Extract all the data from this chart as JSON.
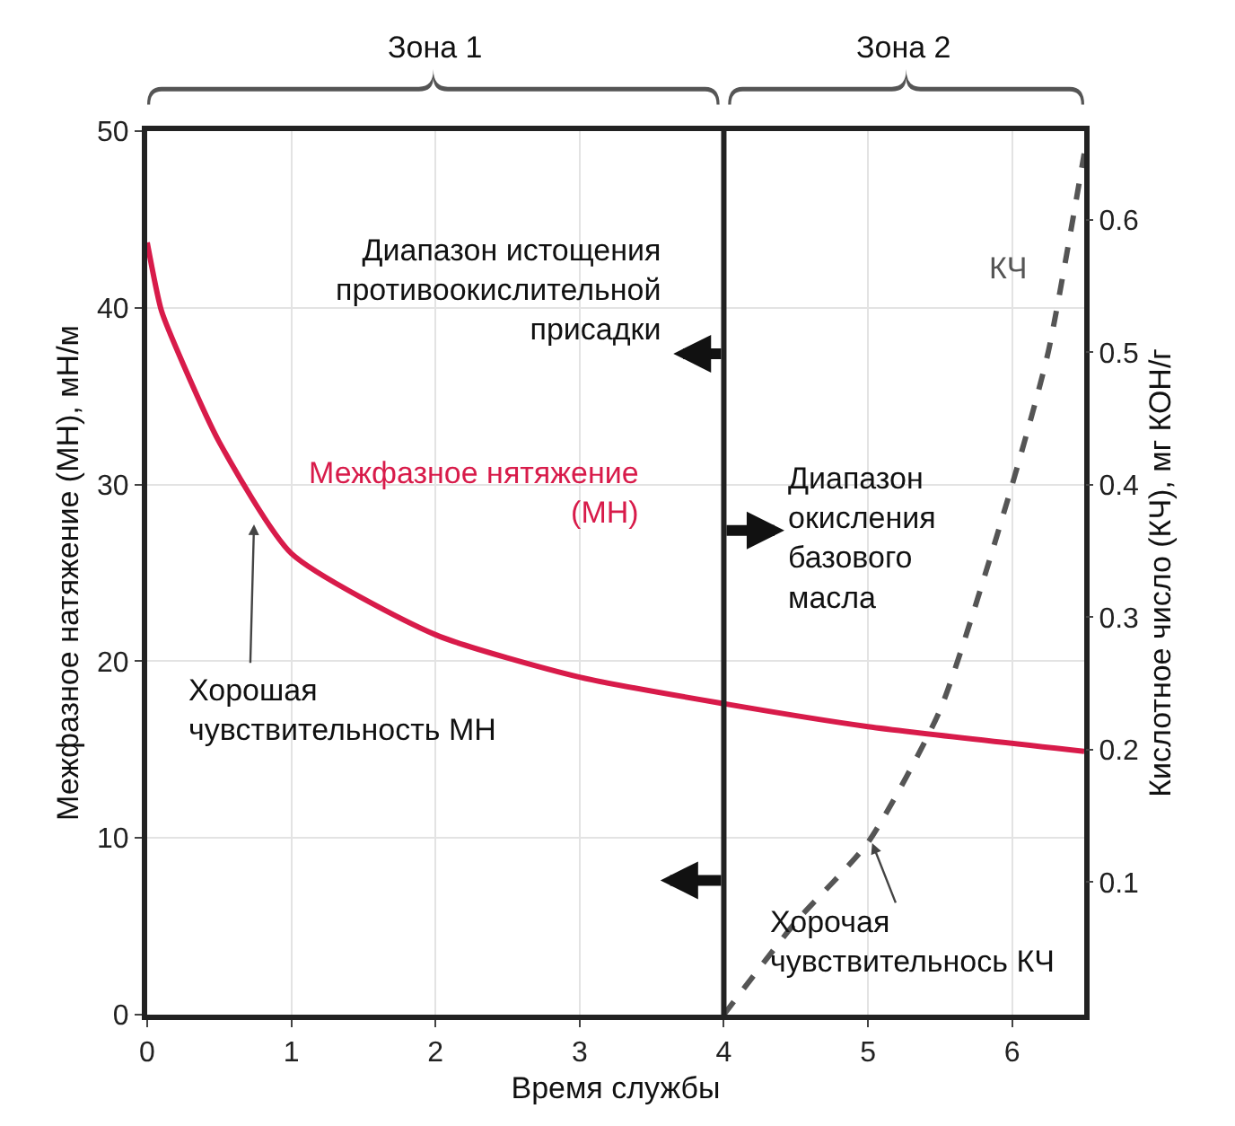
{
  "chart_data": {
    "type": "line",
    "xlabel": "Время службы",
    "ylabel": "Межфазное натяжение (МН), мН/м",
    "y2label": "Кислотное число (КЧ), мг КОН/г",
    "xlim": [
      0,
      6.5
    ],
    "xticks": [
      0,
      1,
      2,
      3,
      4,
      5,
      6
    ],
    "ylim": [
      0,
      50
    ],
    "yticks": [
      0,
      10,
      20,
      30,
      40,
      50
    ],
    "y2lim": [
      0,
      0.667
    ],
    "y2ticks": [
      0.1,
      0.2,
      0.3,
      0.4,
      0.5,
      0.6
    ],
    "grid": true,
    "legend": false,
    "marker": "none",
    "ref_lines": [
      {
        "axis": "x",
        "value": 4,
        "color": "#222222",
        "line_style": "solid"
      }
    ],
    "series": [
      {
        "name": "Межфазное нятяжение\n(МН)",
        "color": "#d81b4a",
        "line_style": "solid",
        "x": [
          0,
          0.1,
          0.25,
          0.5,
          1,
          2,
          3,
          4,
          5,
          6.5
        ],
        "values": [
          43.7,
          39.8,
          36.8,
          32.4,
          26.1,
          21.5,
          19.1,
          17.6,
          16.3,
          14.9
        ]
      },
      {
        "name": "КЧ",
        "color": "#555555",
        "line_style": "dashed",
        "axis": "y2",
        "x": [
          4,
          4.5,
          5,
          5.5,
          6,
          6.25,
          6.5
        ],
        "values": [
          0,
          0.07,
          0.13,
          0.23,
          0.4,
          0.5,
          0.65
        ]
      }
    ],
    "annotations": [
      "Зона 1",
      "Зона 2",
      "Диапазон истощения\nпротивоокислительной\nприсадки",
      "Диапазон\nокисления\nбазового\nмасла",
      "Хорошая\nчувствительность МН",
      {
        "text": "Хорочая\nчувствительнось КЧ",
        "x": 5.02,
        "y": 9.9
      }
    ]
  }
}
